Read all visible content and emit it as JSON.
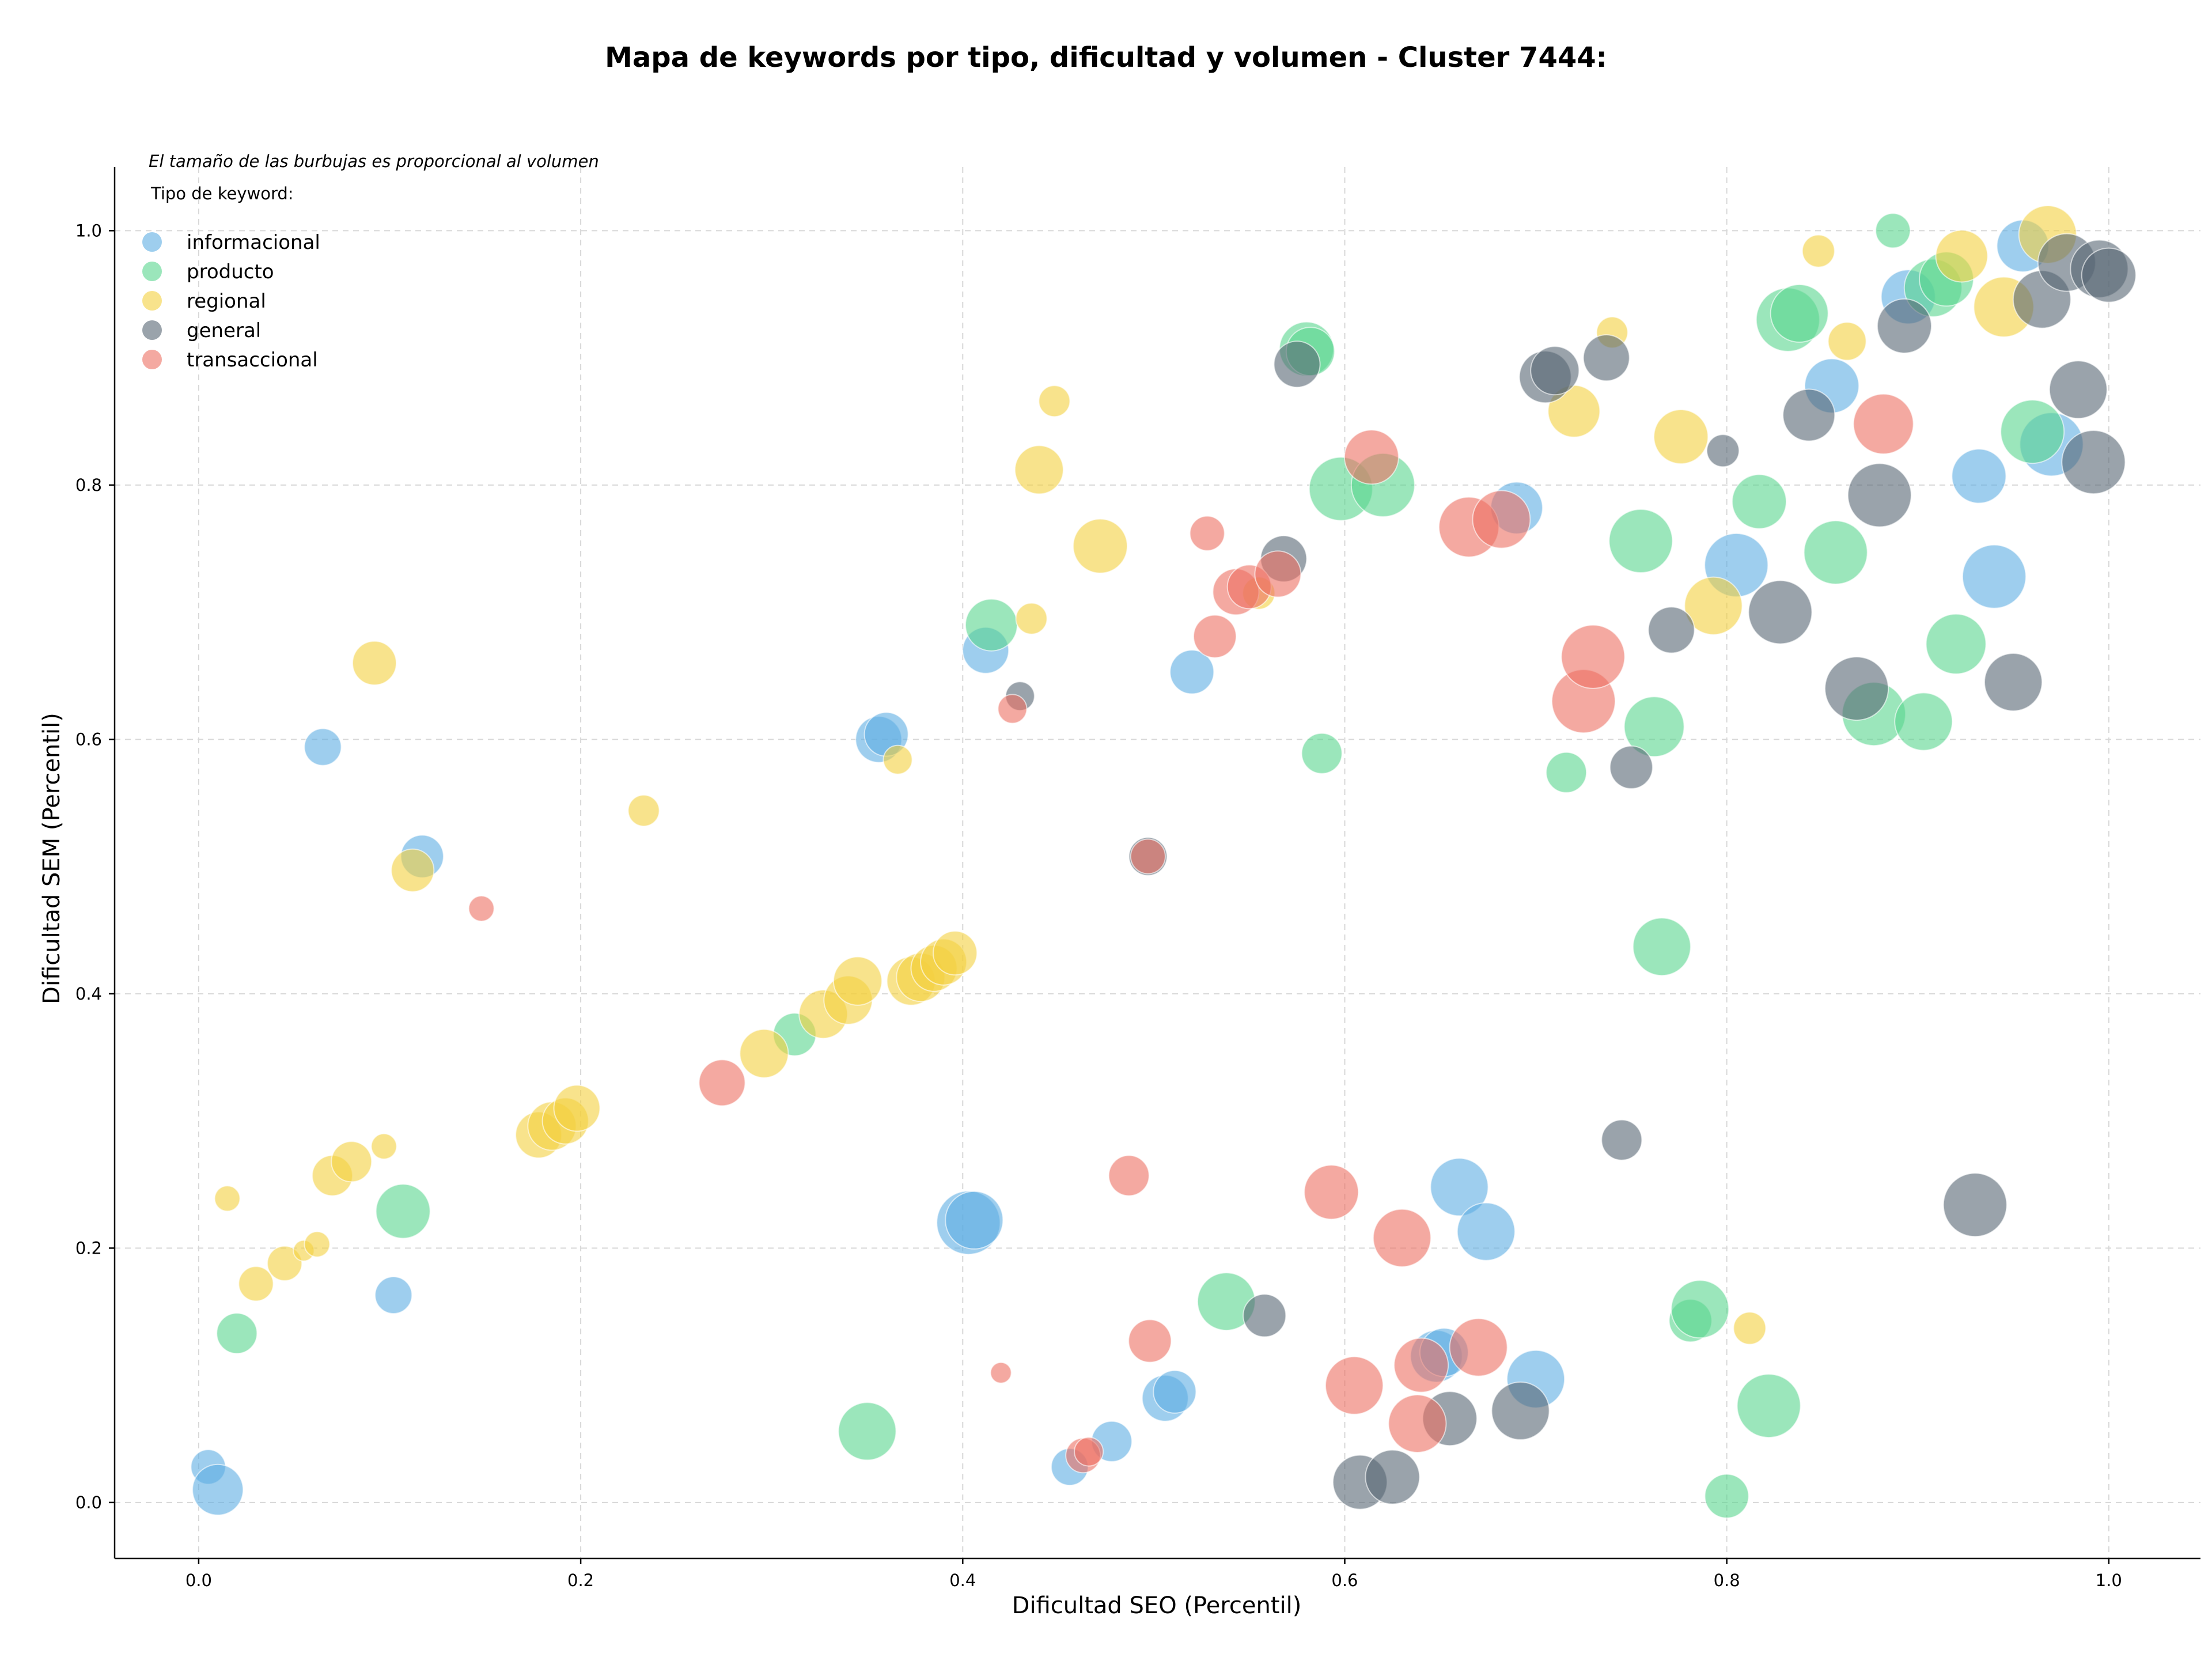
{
  "chart_data": {
    "type": "scatter",
    "title": "Mapa de keywords por tipo, dificultad y volumen - Cluster 7444:",
    "xlabel": "Dificultad SEO (Percentil)",
    "ylabel": "Dificultad SEM (Percentil)",
    "note": "El tamaño de las burbujas es proporcional al volumen",
    "legend_title": "Tipo de keyword:",
    "legend_position": "top-left",
    "grid": true,
    "xlim": [
      -0.044,
      1.048
    ],
    "ylim": [
      -0.044,
      1.05
    ],
    "x_ticks": [
      "0.0",
      "0.2",
      "0.4",
      "0.6",
      "0.8",
      "1.0"
    ],
    "y_ticks": [
      "0.0",
      "0.2",
      "0.4",
      "0.6",
      "0.8",
      "1.0"
    ],
    "series": [
      {
        "name": "informacional",
        "color": "#5DADE2",
        "points": [
          [
            0.005,
            0.028,
            30
          ],
          [
            0.01,
            0.01,
            44
          ],
          [
            0.065,
            0.594,
            32
          ],
          [
            0.102,
            0.163,
            32
          ],
          [
            0.117,
            0.508,
            37
          ],
          [
            0.356,
            0.6,
            40
          ],
          [
            0.36,
            0.604,
            38
          ],
          [
            0.412,
            0.67,
            40
          ],
          [
            0.403,
            0.22,
            55
          ],
          [
            0.406,
            0.222,
            50
          ],
          [
            0.456,
            0.028,
            32
          ],
          [
            0.478,
            0.048,
            35
          ],
          [
            0.506,
            0.082,
            40
          ],
          [
            0.511,
            0.087,
            37
          ],
          [
            0.52,
            0.653,
            38
          ],
          [
            0.66,
            0.248,
            50
          ],
          [
            0.674,
            0.213,
            50
          ],
          [
            0.648,
            0.115,
            45
          ],
          [
            0.652,
            0.118,
            42
          ],
          [
            0.69,
            0.782,
            45
          ],
          [
            0.7,
            0.097,
            50
          ],
          [
            0.805,
            0.737,
            55
          ],
          [
            0.855,
            0.878,
            47
          ],
          [
            0.895,
            0.948,
            47
          ],
          [
            0.932,
            0.807,
            47
          ],
          [
            0.94,
            0.728,
            55
          ],
          [
            0.955,
            0.988,
            45
          ],
          [
            0.97,
            0.832,
            55
          ]
        ]
      },
      {
        "name": "producto",
        "color": "#58D68D",
        "points": [
          [
            0.02,
            0.133,
            35
          ],
          [
            0.107,
            0.229,
            47
          ],
          [
            0.312,
            0.368,
            37
          ],
          [
            0.35,
            0.056,
            50
          ],
          [
            0.415,
            0.69,
            45
          ],
          [
            0.538,
            0.158,
            50
          ],
          [
            0.58,
            0.907,
            47
          ],
          [
            0.582,
            0.905,
            42
          ],
          [
            0.588,
            0.589,
            35
          ],
          [
            0.598,
            0.797,
            55
          ],
          [
            0.62,
            0.8,
            55
          ],
          [
            0.716,
            0.574,
            35
          ],
          [
            0.755,
            0.756,
            55
          ],
          [
            0.762,
            0.61,
            52
          ],
          [
            0.766,
            0.437,
            50
          ],
          [
            0.781,
            0.143,
            37
          ],
          [
            0.786,
            0.152,
            50
          ],
          [
            0.8,
            0.005,
            38
          ],
          [
            0.817,
            0.787,
            47
          ],
          [
            0.822,
            0.076,
            55
          ],
          [
            0.832,
            0.93,
            55
          ],
          [
            0.838,
            0.935,
            50
          ],
          [
            0.857,
            0.747,
            55
          ],
          [
            0.877,
            0.62,
            55
          ],
          [
            0.887,
            1.0,
            30
          ],
          [
            0.903,
            0.614,
            50
          ],
          [
            0.908,
            0.955,
            50
          ],
          [
            0.915,
            0.962,
            47
          ],
          [
            0.92,
            0.675,
            52
          ],
          [
            0.96,
            0.842,
            55
          ]
        ]
      },
      {
        "name": "regional",
        "color": "#F4D03F",
        "points": [
          [
            0.015,
            0.239,
            22
          ],
          [
            0.03,
            0.172,
            30
          ],
          [
            0.045,
            0.188,
            30
          ],
          [
            0.055,
            0.198,
            18
          ],
          [
            0.062,
            0.203,
            22
          ],
          [
            0.07,
            0.257,
            35
          ],
          [
            0.08,
            0.268,
            35
          ],
          [
            0.092,
            0.66,
            38
          ],
          [
            0.097,
            0.28,
            22
          ],
          [
            0.112,
            0.497,
            37
          ],
          [
            0.178,
            0.289,
            40
          ],
          [
            0.185,
            0.296,
            42
          ],
          [
            0.192,
            0.3,
            40
          ],
          [
            0.198,
            0.31,
            40
          ],
          [
            0.233,
            0.544,
            27
          ],
          [
            0.296,
            0.353,
            42
          ],
          [
            0.327,
            0.384,
            42
          ],
          [
            0.34,
            0.395,
            42
          ],
          [
            0.345,
            0.41,
            42
          ],
          [
            0.366,
            0.584,
            25
          ],
          [
            0.373,
            0.41,
            42
          ],
          [
            0.378,
            0.413,
            42
          ],
          [
            0.385,
            0.42,
            40
          ],
          [
            0.39,
            0.425,
            40
          ],
          [
            0.396,
            0.432,
            38
          ],
          [
            0.436,
            0.695,
            27
          ],
          [
            0.44,
            0.812,
            42
          ],
          [
            0.448,
            0.866,
            27
          ],
          [
            0.472,
            0.752,
            47
          ],
          [
            0.555,
            0.715,
            28
          ],
          [
            0.72,
            0.858,
            45
          ],
          [
            0.74,
            0.92,
            27
          ],
          [
            0.776,
            0.838,
            47
          ],
          [
            0.793,
            0.705,
            50
          ],
          [
            0.812,
            0.137,
            28
          ],
          [
            0.848,
            0.984,
            28
          ],
          [
            0.863,
            0.913,
            33
          ],
          [
            0.923,
            0.98,
            45
          ],
          [
            0.945,
            0.94,
            52
          ],
          [
            0.968,
            0.997,
            50
          ]
        ]
      },
      {
        "name": "general",
        "color": "#566573",
        "points": [
          [
            0.43,
            0.634,
            25
          ],
          [
            0.497,
            0.508,
            33
          ],
          [
            0.558,
            0.147,
            37
          ],
          [
            0.568,
            0.742,
            40
          ],
          [
            0.575,
            0.895,
            40
          ],
          [
            0.608,
            0.016,
            47
          ],
          [
            0.625,
            0.02,
            47
          ],
          [
            0.655,
            0.066,
            47
          ],
          [
            0.692,
            0.072,
            50
          ],
          [
            0.705,
            0.885,
            45
          ],
          [
            0.71,
            0.89,
            42
          ],
          [
            0.737,
            0.9,
            40
          ],
          [
            0.745,
            0.285,
            35
          ],
          [
            0.75,
            0.578,
            37
          ],
          [
            0.771,
            0.686,
            40
          ],
          [
            0.798,
            0.827,
            28
          ],
          [
            0.828,
            0.7,
            55
          ],
          [
            0.843,
            0.855,
            45
          ],
          [
            0.868,
            0.64,
            55
          ],
          [
            0.88,
            0.792,
            55
          ],
          [
            0.893,
            0.925,
            47
          ],
          [
            0.93,
            0.234,
            55
          ],
          [
            0.95,
            0.645,
            50
          ],
          [
            0.965,
            0.946,
            50
          ],
          [
            0.978,
            0.975,
            50
          ],
          [
            0.984,
            0.875,
            50
          ],
          [
            0.992,
            0.818,
            55
          ],
          [
            0.995,
            0.97,
            50
          ],
          [
            1.0,
            0.965,
            47
          ]
        ]
      },
      {
        "name": "transaccional",
        "color": "#EC7063",
        "points": [
          [
            0.148,
            0.467,
            22
          ],
          [
            0.274,
            0.33,
            40
          ],
          [
            0.42,
            0.102,
            18
          ],
          [
            0.426,
            0.624,
            25
          ],
          [
            0.463,
            0.037,
            30
          ],
          [
            0.466,
            0.04,
            25
          ],
          [
            0.487,
            0.257,
            35
          ],
          [
            0.497,
            0.508,
            30
          ],
          [
            0.498,
            0.127,
            37
          ],
          [
            0.528,
            0.762,
            30
          ],
          [
            0.532,
            0.681,
            37
          ],
          [
            0.543,
            0.716,
            40
          ],
          [
            0.55,
            0.72,
            38
          ],
          [
            0.565,
            0.73,
            40
          ],
          [
            0.593,
            0.244,
            47
          ],
          [
            0.605,
            0.092,
            50
          ],
          [
            0.614,
            0.822,
            47
          ],
          [
            0.63,
            0.208,
            50
          ],
          [
            0.638,
            0.062,
            50
          ],
          [
            0.64,
            0.108,
            47
          ],
          [
            0.665,
            0.767,
            52
          ],
          [
            0.67,
            0.122,
            50
          ],
          [
            0.682,
            0.773,
            50
          ],
          [
            0.725,
            0.63,
            55
          ],
          [
            0.73,
            0.665,
            55
          ],
          [
            0.882,
            0.848,
            52
          ]
        ]
      }
    ]
  }
}
